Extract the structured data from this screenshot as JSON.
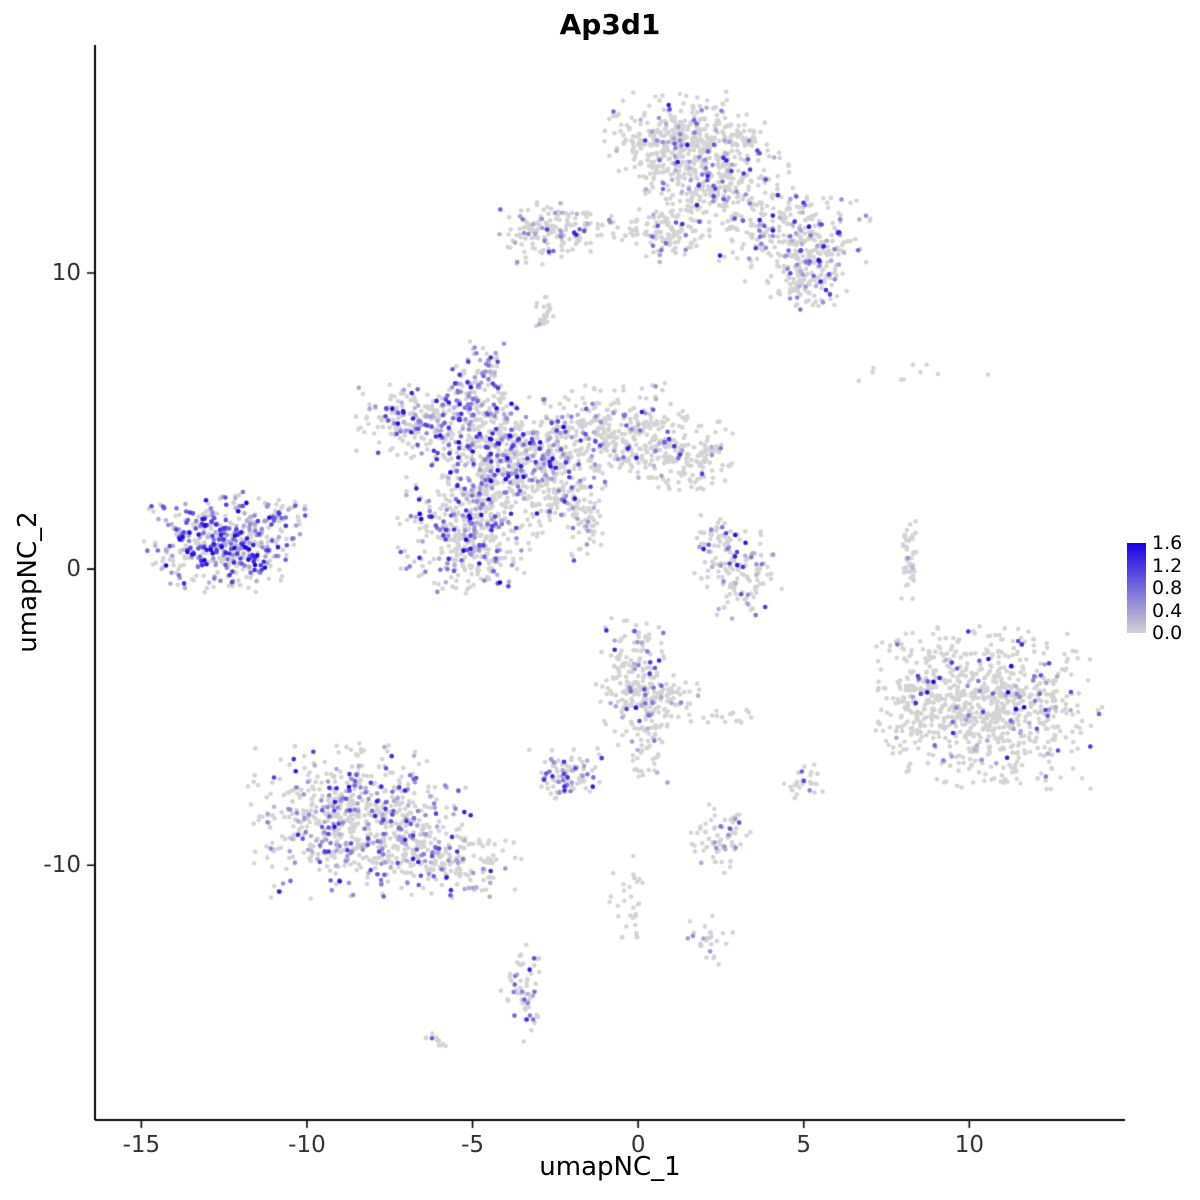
{
  "title": "Ap3d1",
  "chart_data": {
    "type": "scatter",
    "title": "Ap3d1",
    "xlabel": "umapNC_1",
    "ylabel": "umapNC_2",
    "xlim": [
      -16.4,
      14.7
    ],
    "ylim": [
      -18.6,
      17.7
    ],
    "x_ticks": [
      -15,
      -10,
      -5,
      0,
      5,
      10
    ],
    "y_ticks": [
      -10,
      0,
      10
    ],
    "grid": false,
    "point_radius": 2.3,
    "seed": 7,
    "legend": {
      "position": "right",
      "ticks": [
        "1.6",
        "1.2",
        "0.8",
        "0.4",
        "0.0"
      ],
      "max_value": 1.6,
      "low_color": "#d3d3d3",
      "high_color": "#1a00e6"
    },
    "clusters": [
      {
        "name": "top-main-upper",
        "x": 1.4,
        "y": 14.4,
        "sx": 1.15,
        "sy": 0.75,
        "n": 430,
        "frac": 0.1,
        "hi": 1.5
      },
      {
        "name": "top-main-lower",
        "x": 2.5,
        "y": 13.0,
        "sx": 0.95,
        "sy": 0.85,
        "n": 260,
        "frac": 0.12,
        "hi": 1.4
      },
      {
        "name": "top-right-arm",
        "x": 4.7,
        "y": 11.3,
        "sx": 1.05,
        "sy": 0.75,
        "n": 270,
        "frac": 0.2,
        "hi": 1.5
      },
      {
        "name": "top-right-tip",
        "x": 5.2,
        "y": 9.7,
        "sx": 0.55,
        "sy": 0.5,
        "n": 110,
        "frac": 0.22,
        "hi": 1.5
      },
      {
        "name": "upper-left-cluster",
        "x": -2.6,
        "y": 11.4,
        "sx": 0.75,
        "sy": 0.5,
        "n": 150,
        "frac": 0.16,
        "hi": 1.4
      },
      {
        "name": "upper-bridge",
        "x": -0.3,
        "y": 11.6,
        "sx": 1.3,
        "sy": 0.3,
        "n": 55,
        "frac": 0.1,
        "hi": 1.2
      },
      {
        "name": "upper-mid-blob",
        "x": 0.9,
        "y": 11.2,
        "sx": 0.55,
        "sy": 0.4,
        "n": 85,
        "frac": 0.15,
        "hi": 1.3
      },
      {
        "name": "small-upper-dot-cluster",
        "x": -2.8,
        "y": 8.7,
        "sx": 0.18,
        "sy": 0.38,
        "n": 24,
        "frac": 0.12,
        "hi": 1.0
      },
      {
        "name": "central-core",
        "x": -3.8,
        "y": 3.8,
        "sx": 1.1,
        "sy": 0.95,
        "n": 620,
        "frac": 0.34,
        "hi": 1.6
      },
      {
        "name": "central-top-arm",
        "x": -4.9,
        "y": 6.2,
        "sx": 0.45,
        "sy": 0.8,
        "n": 130,
        "frac": 0.42,
        "hi": 1.5
      },
      {
        "name": "central-left-wing",
        "x": -6.6,
        "y": 5.0,
        "sx": 0.85,
        "sy": 0.55,
        "n": 210,
        "frac": 0.3,
        "hi": 1.5
      },
      {
        "name": "central-right-lobe",
        "x": -0.6,
        "y": 4.5,
        "sx": 1.15,
        "sy": 0.8,
        "n": 340,
        "frac": 0.13,
        "hi": 1.4
      },
      {
        "name": "central-right-tip",
        "x": 1.7,
        "y": 3.9,
        "sx": 0.7,
        "sy": 0.6,
        "n": 140,
        "frac": 0.1,
        "hi": 1.2
      },
      {
        "name": "central-lower-lobe",
        "x": -5.1,
        "y": 1.1,
        "sx": 0.95,
        "sy": 0.95,
        "n": 390,
        "frac": 0.3,
        "hi": 1.6
      },
      {
        "name": "central-diagonal-streak",
        "x": -2.3,
        "y": 2.4,
        "sx": 0.55,
        "sy": 0.6,
        "n": 90,
        "frac": 0.2,
        "hi": 1.3
      },
      {
        "name": "streak-tail",
        "x": -1.6,
        "y": 1.4,
        "sx": 0.35,
        "sy": 0.5,
        "n": 40,
        "frac": 0.15,
        "hi": 1.2
      },
      {
        "name": "left-cluster",
        "x": -12.6,
        "y": 0.9,
        "sx": 1.05,
        "sy": 0.75,
        "n": 460,
        "frac": 0.55,
        "hi": 1.6
      },
      {
        "name": "left-cluster-tail",
        "x": -10.8,
        "y": 1.8,
        "sx": 0.45,
        "sy": 0.3,
        "n": 45,
        "frac": 0.4,
        "hi": 1.4
      },
      {
        "name": "mid-right-small",
        "x": 3.0,
        "y": 0.0,
        "sx": 0.6,
        "sy": 0.75,
        "n": 130,
        "frac": 0.2,
        "hi": 1.5
      },
      {
        "name": "mid-right-small-upper",
        "x": 2.4,
        "y": 1.1,
        "sx": 0.35,
        "sy": 0.35,
        "n": 35,
        "frac": 0.12,
        "hi": 1.2
      },
      {
        "name": "thin-streak",
        "x": 8.2,
        "y": 0.3,
        "sx": 0.14,
        "sy": 0.65,
        "n": 45,
        "frac": 0.02,
        "hi": 0.8
      },
      {
        "name": "right-cluster",
        "x": 10.6,
        "y": -4.6,
        "sx": 1.5,
        "sy": 1.25,
        "n": 780,
        "frac": 0.08,
        "hi": 1.6
      },
      {
        "name": "right-cluster-west-lobe",
        "x": 8.3,
        "y": -4.1,
        "sx": 0.5,
        "sy": 0.85,
        "n": 120,
        "frac": 0.08,
        "hi": 1.4
      },
      {
        "name": "sparse-upper-right-dots",
        "x": 8.3,
        "y": 6.6,
        "sx": 1.3,
        "sy": 0.2,
        "n": 10,
        "frac": 0.1,
        "hi": 0.9
      },
      {
        "name": "lower-center-cluster",
        "x": -0.1,
        "y": -3.8,
        "sx": 0.55,
        "sy": 0.95,
        "n": 210,
        "frac": 0.18,
        "hi": 1.5
      },
      {
        "name": "lower-center-east",
        "x": 0.9,
        "y": -4.5,
        "sx": 0.45,
        "sy": 0.5,
        "n": 60,
        "frac": 0.15,
        "hi": 1.3
      },
      {
        "name": "lower-center-tail",
        "x": 0.2,
        "y": -6.1,
        "sx": 0.3,
        "sy": 0.6,
        "n": 40,
        "frac": 0.1,
        "hi": 1.2
      },
      {
        "name": "small-dense-cluster",
        "x": -2.2,
        "y": -6.9,
        "sx": 0.5,
        "sy": 0.38,
        "n": 95,
        "frac": 0.3,
        "hi": 1.4
      },
      {
        "name": "bottom-left-cluster",
        "x": -8.4,
        "y": -8.5,
        "sx": 1.55,
        "sy": 1.15,
        "n": 720,
        "frac": 0.3,
        "hi": 1.5
      },
      {
        "name": "bottom-left-tail",
        "x": -5.7,
        "y": -9.9,
        "sx": 0.95,
        "sy": 0.55,
        "n": 150,
        "frac": 0.2,
        "hi": 1.4
      },
      {
        "name": "small-bottom-mid-cluster",
        "x": 2.4,
        "y": -9.1,
        "sx": 0.45,
        "sy": 0.55,
        "n": 70,
        "frac": 0.16,
        "hi": 1.4
      },
      {
        "name": "tiny-right-pair",
        "x": 5.0,
        "y": -7.2,
        "sx": 0.28,
        "sy": 0.28,
        "n": 28,
        "frac": 0.12,
        "hi": 1.3
      },
      {
        "name": "small-flat-cluster",
        "x": 2.6,
        "y": -5.0,
        "sx": 0.4,
        "sy": 0.15,
        "n": 16,
        "frac": 0.05,
        "hi": 0.8
      },
      {
        "name": "sparse-bottom-streak",
        "x": -0.3,
        "y": -11.3,
        "sx": 0.28,
        "sy": 0.75,
        "n": 30,
        "frac": 0.03,
        "hi": 0.8
      },
      {
        "name": "tiny-bottom-cluster",
        "x": 2.1,
        "y": -12.6,
        "sx": 0.35,
        "sy": 0.4,
        "n": 26,
        "frac": 0.18,
        "hi": 1.2
      },
      {
        "name": "bottom-elongated-cluster",
        "x": -3.5,
        "y": -14.4,
        "sx": 0.28,
        "sy": 0.85,
        "n": 60,
        "frac": 0.25,
        "hi": 1.4
      },
      {
        "name": "tiny-bottom-left-dots",
        "x": -6.1,
        "y": -15.9,
        "sx": 0.25,
        "sy": 0.18,
        "n": 12,
        "frac": 0.12,
        "hi": 1.0
      }
    ]
  }
}
